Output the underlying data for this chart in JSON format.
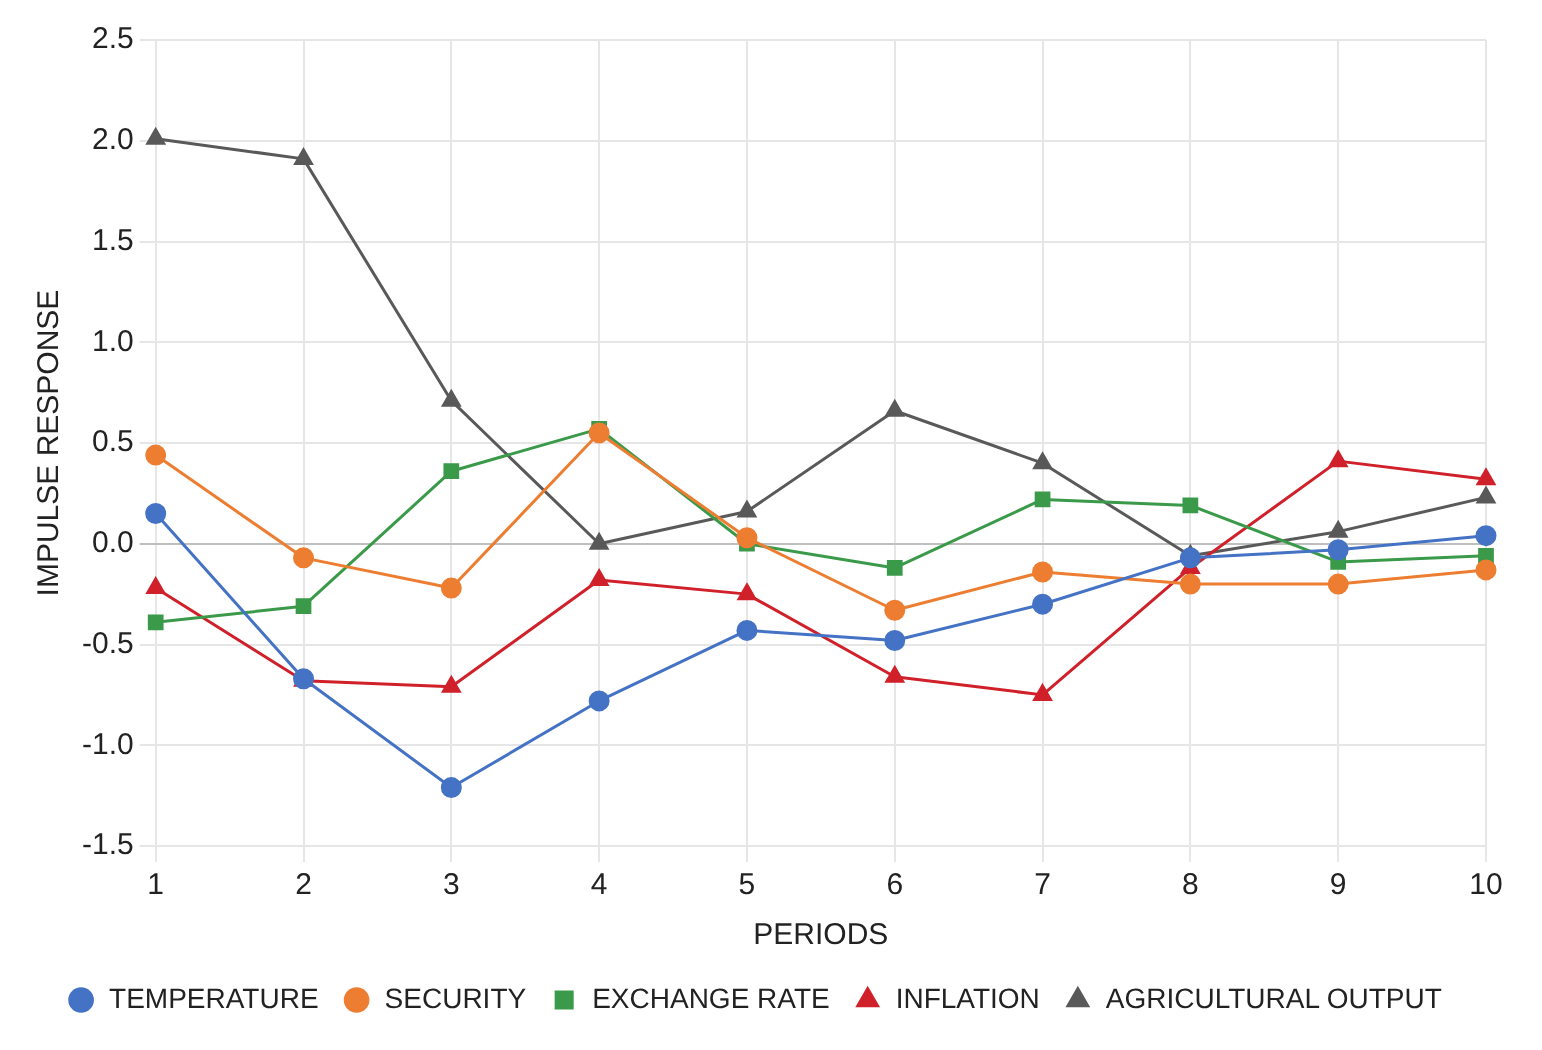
{
  "chart_data": {
    "type": "line",
    "xlabel": "PERIODS",
    "ylabel": "IMPULSE RESPONSE",
    "categories": [
      "1",
      "2",
      "3",
      "4",
      "5",
      "6",
      "7",
      "8",
      "9",
      "10"
    ],
    "ylim": [
      -1.5,
      2.5
    ],
    "yticks": [
      {
        "value": -1.5,
        "label": "-1.5"
      },
      {
        "value": -1,
        "label": "-1.0"
      },
      {
        "value": -0.5,
        "label": "-0.5"
      },
      {
        "value": 0,
        "label": "0.0"
      },
      {
        "value": 0.5,
        "label": "0.5"
      },
      {
        "value": 1,
        "label": "1.0"
      },
      {
        "value": 1.5,
        "label": "1.5"
      },
      {
        "value": 2,
        "label": "2.0"
      },
      {
        "value": 2.5,
        "label": "2.5"
      }
    ],
    "grid": true,
    "legend": "bottom",
    "line_style": "solid",
    "series": [
      {
        "name": "TEMPERATURE",
        "color": "#4472c4",
        "marker": "circle",
        "values": [
          0.15,
          -0.67,
          -1.21,
          -0.78,
          -0.43,
          -0.48,
          -0.3,
          -0.07,
          -0.03,
          0.04
        ]
      },
      {
        "name": "SECURITY",
        "color": "#ed7d31",
        "marker": "circle",
        "values": [
          0.44,
          -0.07,
          -0.22,
          0.55,
          0.03,
          -0.33,
          -0.14,
          -0.2,
          -0.2,
          -0.13
        ]
      },
      {
        "name": "EXCHANGE RATE",
        "color": "#3a9a4a",
        "marker": "square",
        "values": [
          -0.39,
          -0.31,
          0.36,
          0.57,
          0.0,
          -0.12,
          0.22,
          0.19,
          -0.09,
          -0.06
        ]
      },
      {
        "name": "INFLATION",
        "color": "#d0202a",
        "marker": "triangle",
        "values": [
          -0.22,
          -0.68,
          -0.71,
          -0.18,
          -0.25,
          -0.66,
          -0.75,
          -0.12,
          0.41,
          0.32
        ]
      },
      {
        "name": "AGRICULTURAL OUTPUT",
        "color": "#595959",
        "marker": "triangle",
        "values": [
          2.01,
          1.91,
          0.71,
          0.0,
          0.16,
          0.66,
          0.4,
          -0.06,
          0.06,
          0.23
        ]
      }
    ]
  }
}
